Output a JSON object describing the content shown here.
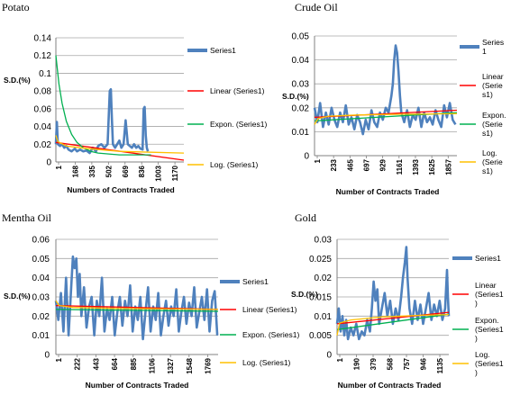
{
  "chart_data": [
    {
      "type": "line",
      "title": "Potato",
      "xlabel": "Numbers of Contracts Traded",
      "ylabel": "S.D.(%)",
      "ylim": [
        0,
        0.14
      ],
      "yticks": [
        "0",
        "0.02",
        "0.04",
        "0.06",
        "0.08",
        "0.1",
        "0.12",
        "0.14"
      ],
      "xlim": [
        1,
        1210
      ],
      "xticks": [
        "1",
        "168",
        "335",
        "502",
        "669",
        "836",
        "1003",
        "1170"
      ],
      "grid": "horizontal",
      "legend_position": "right",
      "series": [
        {
          "name": "Series1",
          "color": "#4f81bd",
          "kind": "data",
          "x": [
            1,
            10,
            20,
            40,
            60,
            80,
            100,
            120,
            150,
            180,
            200,
            230,
            260,
            290,
            320,
            350,
            380,
            400,
            430,
            460,
            490,
            500,
            510,
            520,
            530,
            540,
            560,
            580,
            600,
            620,
            640,
            660,
            680,
            700,
            720,
            740,
            760,
            780,
            800,
            820,
            830,
            840,
            850,
            860,
            870
          ],
          "y": [
            0.02,
            0.045,
            0.02,
            0.018,
            0.02,
            0.016,
            0.018,
            0.014,
            0.012,
            0.015,
            0.012,
            0.014,
            0.012,
            0.013,
            0.01,
            0.016,
            0.012,
            0.018,
            0.02,
            0.016,
            0.02,
            0.05,
            0.08,
            0.082,
            0.05,
            0.02,
            0.016,
            0.02,
            0.024,
            0.016,
            0.02,
            0.047,
            0.02,
            0.018,
            0.016,
            0.02,
            0.016,
            0.018,
            0.015,
            0.014,
            0.06,
            0.062,
            0.03,
            0.016,
            0.012
          ]
        },
        {
          "name": "Linear (Series1)",
          "color": "#ff0000",
          "kind": "trend",
          "x": [
            1,
            1210
          ],
          "y": [
            0.022,
            0.002
          ]
        },
        {
          "name": "Expon. (Series1)",
          "color": "#00b050",
          "kind": "trend",
          "x": [
            1,
            30,
            60,
            100,
            150,
            200,
            260,
            330,
            400,
            500,
            600,
            700,
            800,
            900
          ],
          "y": [
            0.12,
            0.088,
            0.066,
            0.046,
            0.031,
            0.022,
            0.016,
            0.012,
            0.01,
            0.009,
            0.008,
            0.008,
            0.008,
            0.008
          ]
        },
        {
          "name": "Log. (Series1)",
          "color": "#ffc000",
          "kind": "trend",
          "x": [
            1,
            20,
            100,
            300,
            600,
            900,
            1210
          ],
          "y": [
            0.03,
            0.023,
            0.018,
            0.015,
            0.012,
            0.011,
            0.01
          ]
        }
      ]
    },
    {
      "type": "line",
      "title": "Crude Oil",
      "xlabel": "Number of Contracts Traded",
      "ylabel": "S.D.(%)",
      "ylim": [
        0,
        0.05
      ],
      "yticks": [
        "0",
        "0.01",
        "0.02",
        "0.03",
        "0.04",
        "0.05"
      ],
      "xlim": [
        1,
        2000
      ],
      "xticks": [
        "1",
        "233",
        "465",
        "697",
        "929",
        "1161",
        "1393",
        "1625",
        "1857"
      ],
      "grid": "horizontal",
      "legend_position": "right",
      "series": [
        {
          "name": "Series1",
          "color": "#4f81bd",
          "kind": "data",
          "x": [
            1,
            40,
            80,
            120,
            160,
            200,
            240,
            280,
            320,
            360,
            400,
            440,
            480,
            520,
            560,
            600,
            640,
            680,
            720,
            760,
            800,
            840,
            880,
            920,
            960,
            1000,
            1040,
            1080,
            1100,
            1120,
            1140,
            1160,
            1180,
            1200,
            1220,
            1260,
            1300,
            1340,
            1380,
            1420,
            1460,
            1500,
            1540,
            1580,
            1620,
            1660,
            1700,
            1740,
            1780,
            1820,
            1860,
            1900,
            1940,
            1980
          ],
          "y": [
            0.02,
            0.014,
            0.022,
            0.012,
            0.018,
            0.013,
            0.02,
            0.015,
            0.012,
            0.018,
            0.014,
            0.021,
            0.013,
            0.016,
            0.011,
            0.017,
            0.014,
            0.009,
            0.015,
            0.011,
            0.019,
            0.014,
            0.012,
            0.018,
            0.015,
            0.02,
            0.018,
            0.025,
            0.03,
            0.04,
            0.046,
            0.043,
            0.035,
            0.025,
            0.018,
            0.014,
            0.019,
            0.012,
            0.017,
            0.015,
            0.02,
            0.012,
            0.018,
            0.014,
            0.016,
            0.013,
            0.019,
            0.015,
            0.012,
            0.021,
            0.016,
            0.022,
            0.015,
            0.013
          ]
        },
        {
          "name": "Linear (Series1)",
          "color": "#ff0000",
          "kind": "trend",
          "x": [
            1,
            2000
          ],
          "y": [
            0.016,
            0.019
          ]
        },
        {
          "name": "Expon. (Series1)",
          "color": "#00b050",
          "kind": "trend",
          "x": [
            1,
            2000
          ],
          "y": [
            0.0145,
            0.018
          ]
        },
        {
          "name": "Log. (Series1)",
          "color": "#ffc000",
          "kind": "trend",
          "x": [
            1,
            50,
            200,
            600,
            1200,
            2000
          ],
          "y": [
            0.013,
            0.0155,
            0.0165,
            0.017,
            0.0173,
            0.0175
          ]
        }
      ]
    },
    {
      "type": "line",
      "title": "Mentha Oil",
      "xlabel": "Number of Contracts Traded",
      "ylabel": "S.D.(%)",
      "ylim": [
        0,
        0.06
      ],
      "yticks": [
        "0",
        "0.01",
        "0.02",
        "0.03",
        "0.04",
        "0.05",
        "0.06"
      ],
      "xlim": [
        1,
        1900
      ],
      "xticks": [
        "1",
        "222",
        "443",
        "664",
        "885",
        "1106",
        "1327",
        "1548",
        "1769"
      ],
      "grid": "horizontal",
      "legend_position": "right",
      "series": [
        {
          "name": "Series1",
          "color": "#4f81bd",
          "kind": "data",
          "x": [
            1,
            30,
            60,
            90,
            120,
            150,
            180,
            200,
            220,
            240,
            260,
            280,
            300,
            330,
            360,
            390,
            420,
            450,
            480,
            510,
            540,
            570,
            600,
            630,
            660,
            690,
            720,
            750,
            780,
            810,
            840,
            870,
            900,
            930,
            960,
            990,
            1020,
            1050,
            1080,
            1110,
            1140,
            1170,
            1200,
            1230,
            1260,
            1290,
            1320,
            1350,
            1380,
            1410,
            1440,
            1470,
            1500,
            1530,
            1560,
            1590,
            1620,
            1650,
            1680,
            1710,
            1740,
            1770,
            1800,
            1830,
            1860,
            1890
          ],
          "y": [
            0.028,
            0.018,
            0.032,
            0.012,
            0.04,
            0.01,
            0.035,
            0.051,
            0.045,
            0.05,
            0.03,
            0.042,
            0.02,
            0.035,
            0.014,
            0.025,
            0.03,
            0.01,
            0.028,
            0.02,
            0.04,
            0.012,
            0.024,
            0.018,
            0.03,
            0.01,
            0.022,
            0.03,
            0.015,
            0.028,
            0.02,
            0.036,
            0.012,
            0.025,
            0.018,
            0.03,
            0.008,
            0.022,
            0.035,
            0.012,
            0.025,
            0.018,
            0.032,
            0.01,
            0.02,
            0.028,
            0.015,
            0.025,
            0.02,
            0.034,
            0.012,
            0.022,
            0.03,
            0.016,
            0.027,
            0.02,
            0.035,
            0.014,
            0.022,
            0.03,
            0.018,
            0.034,
            0.012,
            0.028,
            0.033,
            0.01
          ]
        },
        {
          "name": "Linear (Series1)",
          "color": "#ff0000",
          "kind": "trend",
          "x": [
            1,
            1900
          ],
          "y": [
            0.0255,
            0.0235
          ]
        },
        {
          "name": "Expon. (Series1)",
          "color": "#00b050",
          "kind": "trend",
          "x": [
            1,
            1900
          ],
          "y": [
            0.0235,
            0.0225
          ]
        },
        {
          "name": "Log. (Series1)",
          "color": "#ffc000",
          "kind": "trend",
          "x": [
            1,
            40,
            200,
            700,
            1300,
            1900
          ],
          "y": [
            0.028,
            0.0255,
            0.0245,
            0.024,
            0.0237,
            0.0235
          ]
        }
      ]
    },
    {
      "type": "line",
      "title": "Gold",
      "xlabel": "Number of Contracts Traded",
      "ylabel": "S.D.(%)",
      "ylim": [
        0,
        0.03
      ],
      "yticks": [
        "0",
        "0.005",
        "0.01",
        "0.015",
        "0.02",
        "0.025",
        "0.03"
      ],
      "xlim": [
        1,
        1220
      ],
      "xticks": [
        "1",
        "190",
        "379",
        "568",
        "757",
        "946",
        "1135"
      ],
      "grid": "horizontal",
      "legend_position": "right",
      "series": [
        {
          "name": "Series1",
          "color": "#4f81bd",
          "kind": "data",
          "x": [
            1,
            20,
            40,
            60,
            80,
            100,
            120,
            150,
            180,
            210,
            240,
            270,
            300,
            330,
            360,
            380,
            400,
            420,
            440,
            460,
            490,
            520,
            550,
            580,
            610,
            640,
            670,
            700,
            720,
            740,
            757,
            770,
            790,
            820,
            850,
            880,
            910,
            940,
            970,
            1000,
            1030,
            1060,
            1090,
            1120,
            1150,
            1180,
            1200,
            1210,
            1220
          ],
          "y": [
            0.008,
            0.012,
            0.006,
            0.01,
            0.005,
            0.009,
            0.004,
            0.007,
            0.005,
            0.008,
            0.004,
            0.006,
            0.005,
            0.009,
            0.006,
            0.012,
            0.019,
            0.014,
            0.017,
            0.008,
            0.012,
            0.016,
            0.01,
            0.014,
            0.008,
            0.012,
            0.009,
            0.015,
            0.02,
            0.024,
            0.028,
            0.02,
            0.012,
            0.008,
            0.014,
            0.009,
            0.013,
            0.008,
            0.012,
            0.016,
            0.009,
            0.013,
            0.01,
            0.014,
            0.009,
            0.012,
            0.022,
            0.015,
            0.01
          ]
        },
        {
          "name": "Linear (Series1)",
          "color": "#ff0000",
          "kind": "trend",
          "x": [
            1,
            1220
          ],
          "y": [
            0.008,
            0.011
          ]
        },
        {
          "name": "Expon. (Series1)",
          "color": "#00b050",
          "kind": "trend",
          "x": [
            1,
            1220
          ],
          "y": [
            0.0065,
            0.0105
          ]
        },
        {
          "name": "Log. (Series1)",
          "color": "#ffc000",
          "kind": "trend",
          "x": [
            1,
            30,
            150,
            500,
            900,
            1220
          ],
          "y": [
            0.005,
            0.0082,
            0.009,
            0.0098,
            0.0102,
            0.0104
          ]
        }
      ]
    }
  ]
}
